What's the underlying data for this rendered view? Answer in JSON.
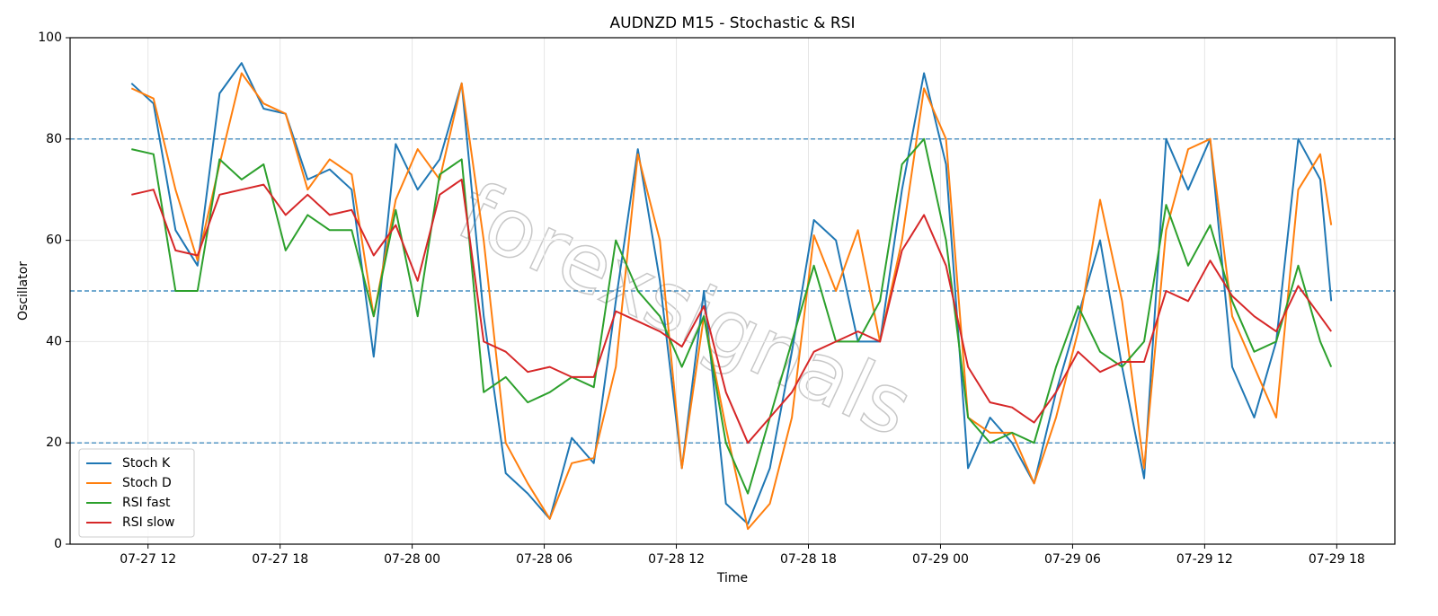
{
  "chart_data": {
    "type": "line",
    "title": "AUDNZD M15 - Stochastic & RSI",
    "x_label": "Time",
    "y_label": "Oscillator",
    "watermark": "forexsignals",
    "x": [
      11.25,
      12.25,
      13.25,
      14.25,
      15.25,
      16.25,
      17.25,
      18.25,
      19.25,
      20.25,
      21.25,
      22.25,
      23.25,
      24.25,
      25.25,
      26.25,
      27.25,
      28.25,
      29.25,
      30.25,
      31.25,
      32.25,
      33.25,
      34.25,
      35.25,
      36.25,
      37.25,
      38.25,
      39.25,
      40.25,
      41.25,
      42.25,
      43.25,
      44.25,
      45.25,
      46.25,
      47.25,
      48.25,
      49.25,
      50.25,
      51.25,
      52.25,
      53.25,
      54.25,
      55.25,
      56.25,
      57.25,
      58.25,
      59.25,
      60.25,
      61.25,
      62.25,
      63.25,
      64.25,
      65.25,
      65.75
    ],
    "series": [
      {
        "name": "Stoch K",
        "color": "#1f77b4",
        "values": [
          91,
          87,
          62,
          55,
          89,
          95,
          86,
          85,
          72,
          74,
          70,
          37,
          79,
          70,
          76,
          91,
          45,
          14,
          10,
          5,
          21,
          16,
          48,
          78,
          52,
          15,
          50,
          8,
          4,
          15,
          38,
          64,
          60,
          40,
          40,
          70,
          93,
          75,
          15,
          25,
          20,
          12,
          30,
          45,
          60,
          35,
          13,
          80,
          70,
          80,
          35,
          25,
          40,
          80,
          72,
          48
        ]
      },
      {
        "name": "Stoch D",
        "color": "#ff7f0e",
        "values": [
          90,
          88,
          70,
          56,
          75,
          93,
          87,
          85,
          70,
          76,
          73,
          45,
          68,
          78,
          72,
          91,
          60,
          20,
          12,
          5,
          16,
          17,
          35,
          77,
          60,
          15,
          45,
          23,
          3,
          8,
          25,
          61,
          50,
          62,
          40,
          60,
          90,
          80,
          25,
          22,
          22,
          12,
          25,
          42,
          68,
          48,
          15,
          62,
          78,
          80,
          45,
          35,
          25,
          70,
          77,
          63
        ]
      },
      {
        "name": "RSI fast",
        "color": "#2ca02c",
        "values": [
          78,
          77,
          50,
          50,
          76,
          72,
          75,
          58,
          65,
          62,
          62,
          45,
          66,
          45,
          73,
          76,
          30,
          33,
          28,
          30,
          33,
          31,
          60,
          50,
          45,
          35,
          45,
          20,
          10,
          25,
          40,
          55,
          40,
          40,
          48,
          75,
          80,
          60,
          25,
          20,
          22,
          20,
          35,
          47,
          38,
          35,
          40,
          67,
          55,
          63,
          48,
          38,
          40,
          55,
          40,
          35
        ]
      },
      {
        "name": "RSI slow",
        "color": "#d62728",
        "values": [
          69,
          70,
          58,
          57,
          69,
          70,
          71,
          65,
          69,
          65,
          66,
          57,
          63,
          52,
          69,
          72,
          40,
          38,
          34,
          35,
          33,
          33,
          46,
          44,
          42,
          39,
          47,
          30,
          20,
          25,
          30,
          38,
          40,
          42,
          40,
          58,
          65,
          55,
          35,
          28,
          27,
          24,
          30,
          38,
          34,
          36,
          36,
          50,
          48,
          56,
          49,
          45,
          42,
          51,
          45,
          42
        ]
      }
    ],
    "xlim": [
      8.46,
      68.64
    ],
    "ylim": [
      0,
      100
    ],
    "xticks": [
      {
        "value": 12,
        "label": "07-27 12"
      },
      {
        "value": 18,
        "label": "07-27 18"
      },
      {
        "value": 24,
        "label": "07-28 00"
      },
      {
        "value": 30,
        "label": "07-28 06"
      },
      {
        "value": 36,
        "label": "07-28 12"
      },
      {
        "value": 42,
        "label": "07-28 18"
      },
      {
        "value": 48,
        "label": "07-29 00"
      },
      {
        "value": 54,
        "label": "07-29 06"
      },
      {
        "value": 60,
        "label": "07-29 12"
      },
      {
        "value": 66,
        "label": "07-29 18"
      }
    ],
    "yticks": [
      0,
      20,
      40,
      60,
      80,
      100
    ],
    "hlines": [
      20,
      50,
      80
    ],
    "hline_color": "#1f77b4",
    "grid": true,
    "legend": "lower left"
  }
}
